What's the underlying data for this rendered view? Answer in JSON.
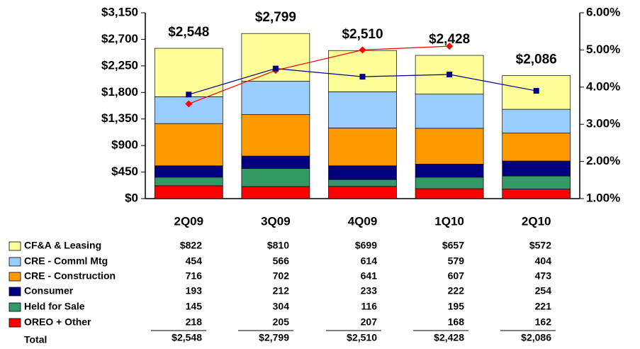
{
  "chart_data": {
    "type": "bar",
    "stacked": true,
    "categories": [
      "2Q09",
      "3Q09",
      "4Q09",
      "1Q10",
      "2Q10"
    ],
    "series": [
      {
        "name": "CF&A & Leasing",
        "color": "#ffff99",
        "values": [
          822,
          810,
          699,
          657,
          572
        ],
        "value_labels": [
          "$822",
          "$810",
          "$699",
          "$657",
          "$572"
        ]
      },
      {
        "name": "CRE - Comml Mtg",
        "color": "#99ccff",
        "values": [
          454,
          566,
          614,
          579,
          404
        ]
      },
      {
        "name": "CRE - Construction",
        "color": "#ff9900",
        "values": [
          716,
          702,
          641,
          607,
          473
        ]
      },
      {
        "name": "Consumer",
        "color": "#000080",
        "values": [
          193,
          212,
          233,
          222,
          254
        ]
      },
      {
        "name": "Held for Sale",
        "color": "#339966",
        "values": [
          145,
          304,
          116,
          195,
          221
        ]
      },
      {
        "name": "OREO + Other",
        "color": "#ff0000",
        "values": [
          218,
          205,
          207,
          168,
          162
        ]
      }
    ],
    "totals": {
      "name": "Total",
      "values": [
        2548,
        2799,
        2510,
        2428,
        2086
      ],
      "value_labels": [
        "$2,548",
        "$2,799",
        "$2,510",
        "$2,428",
        "$2,086"
      ]
    },
    "lines": [
      {
        "color": "#ff0000",
        "marker": "diamond",
        "axis": "y2",
        "values": [
          3.55,
          4.45,
          5.0,
          5.1,
          null
        ]
      },
      {
        "color": "#000080",
        "marker": "square",
        "axis": "y2",
        "values": [
          3.8,
          4.5,
          4.28,
          4.34,
          3.9
        ]
      }
    ],
    "ylim": [
      0,
      3150
    ],
    "yticks": [
      {
        "value": 0,
        "label": "$0"
      },
      {
        "value": 450,
        "label": "$450"
      },
      {
        "value": 900,
        "label": "$900"
      },
      {
        "value": 1350,
        "label": "$1,350"
      },
      {
        "value": 1800,
        "label": "$1,800"
      },
      {
        "value": 2250,
        "label": "$2,250"
      },
      {
        "value": 2700,
        "label": "$2,700"
      },
      {
        "value": 3150,
        "label": "$3,150"
      }
    ],
    "y2lim": [
      1,
      6
    ],
    "y2ticks": [
      {
        "value": 1,
        "label": "1.00%"
      },
      {
        "value": 2,
        "label": "2.00%"
      },
      {
        "value": 3,
        "label": "3.00%"
      },
      {
        "value": 4,
        "label": "4.00%"
      },
      {
        "value": 5,
        "label": "5.00%"
      },
      {
        "value": 6,
        "label": "6.00%"
      }
    ],
    "grid": false
  }
}
